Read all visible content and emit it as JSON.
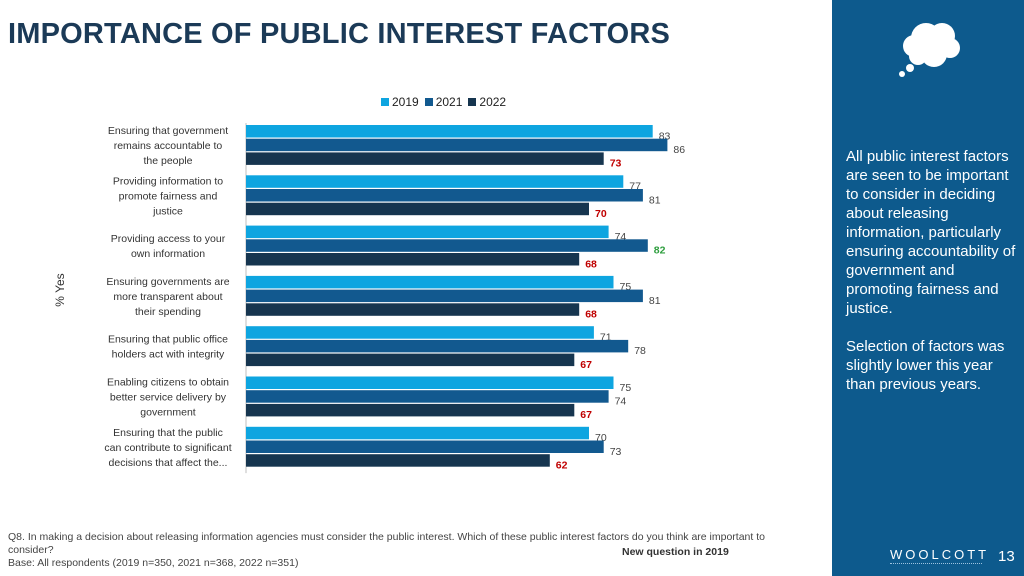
{
  "title": "IMPORTANCE OF PUBLIC INTEREST FACTORS",
  "side_text": [
    "All public interest factors are seen to be important to consider in deciding about releasing information, particularly ensuring accountability of government and promoting fairness and justice.",
    "Selection of factors was slightly lower this year than previous years."
  ],
  "brand": "WOOLCOTT",
  "page_number": "13",
  "footnote": {
    "question": "Q8. In making a decision about releasing information agencies must consider the public interest. Which of these public interest factors do you think are important to consider?",
    "new_question": "New question in 2019",
    "base": "Base: All respondents (2019 n=350, 2021 n=368, 2022 n=351)"
  },
  "colors": {
    "2019": "#0ea5e0",
    "2021": "#12598f",
    "2022": "#16354f",
    "highlight_low": "#c00000",
    "highlight_high": "#2e9e3e"
  },
  "chart_data": {
    "type": "bar",
    "orientation": "horizontal",
    "ylabel": "% Yes",
    "xlim": [
      0,
      100
    ],
    "grid": false,
    "legend": "top-center",
    "categories": [
      [
        "Ensuring that government",
        "remains accountable to",
        "the people"
      ],
      [
        "Providing information to",
        "promote fairness and",
        "justice"
      ],
      [
        "Providing access to your",
        "own information"
      ],
      [
        "Ensuring governments are",
        "more transparent about",
        "their spending"
      ],
      [
        "Ensuring that public office",
        "holders act with integrity"
      ],
      [
        "Enabling citizens to obtain",
        "better service delivery by",
        "government"
      ],
      [
        "Ensuring that the public",
        "can contribute to significant",
        "decisions that affect the..."
      ]
    ],
    "series": [
      {
        "name": "2019",
        "values": [
          83,
          77,
          74,
          75,
          71,
          75,
          70
        ]
      },
      {
        "name": "2021",
        "values": [
          86,
          81,
          82,
          81,
          78,
          74,
          73
        ]
      },
      {
        "name": "2022",
        "values": [
          73,
          70,
          68,
          68,
          67,
          67,
          62
        ]
      }
    ],
    "highlights": {
      "2021": {
        "2": "high"
      },
      "2022": {
        "0": "low",
        "1": "low",
        "2": "low",
        "3": "low",
        "4": "low",
        "5": "low",
        "6": "low"
      }
    }
  }
}
